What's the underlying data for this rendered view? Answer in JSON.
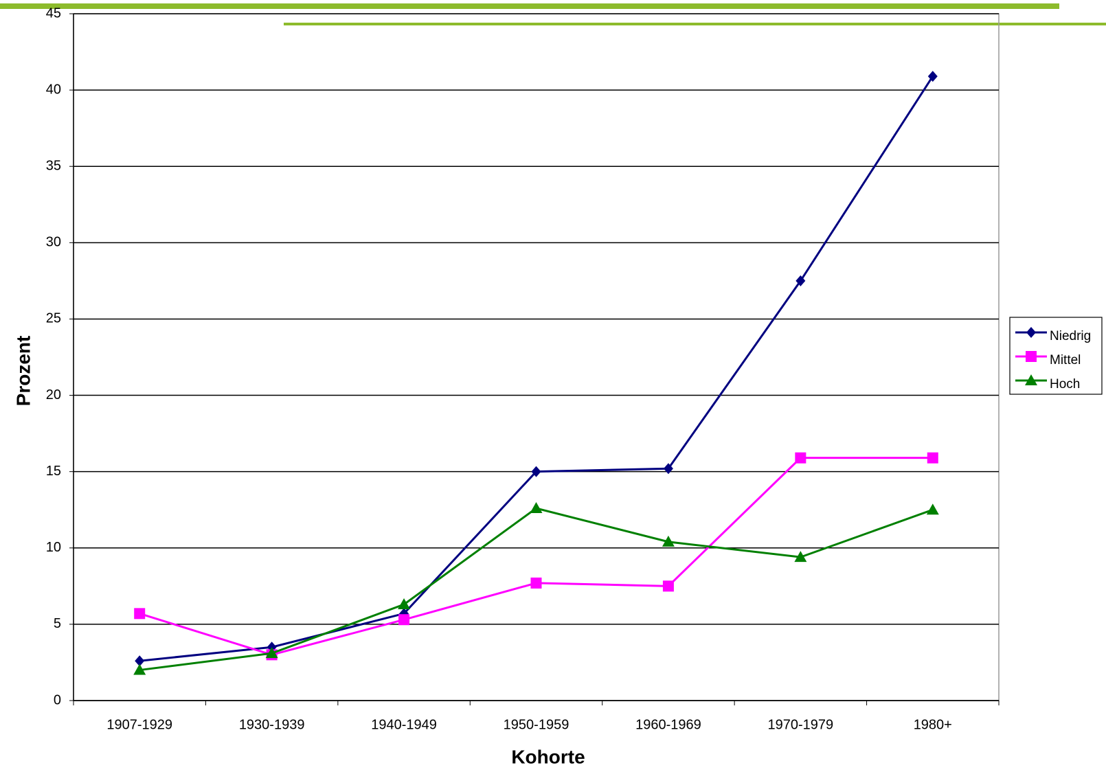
{
  "chart_data": {
    "type": "line",
    "categories": [
      "1907-1929",
      "1930-1939",
      "1940-1949",
      "1950-1959",
      "1960-1969",
      "1970-1979",
      "1980+"
    ],
    "series": [
      {
        "name": "Niedrig",
        "color": "#000080",
        "marker": "diamond",
        "values": [
          2.6,
          3.5,
          5.7,
          15.0,
          15.2,
          27.5,
          40.9
        ]
      },
      {
        "name": "Mittel",
        "color": "#ff00ff",
        "marker": "square",
        "values": [
          5.7,
          3.0,
          5.3,
          7.7,
          7.5,
          15.9,
          15.9
        ]
      },
      {
        "name": "Hoch",
        "color": "#008000",
        "marker": "triangle",
        "values": [
          2.0,
          3.1,
          6.3,
          12.6,
          10.4,
          9.4,
          12.5
        ]
      }
    ],
    "xlabel": "Kohorte",
    "ylabel": "Prozent",
    "ylim": [
      0,
      45
    ],
    "yticks": [
      0,
      5,
      10,
      15,
      20,
      25,
      30,
      35,
      40,
      45
    ],
    "grid": true
  }
}
